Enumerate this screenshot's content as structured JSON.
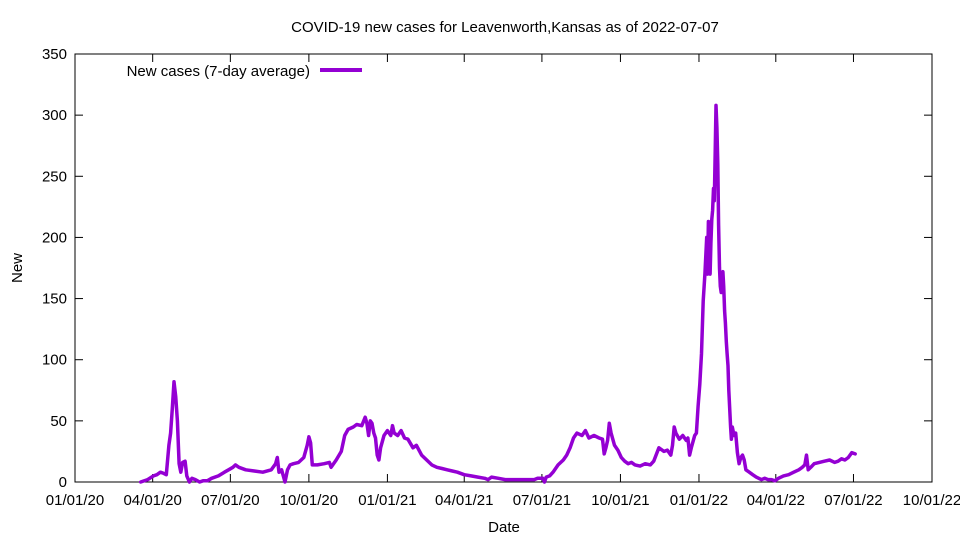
{
  "chart_data": {
    "type": "line",
    "title": "COVID-19 new cases for Leavenworth,Kansas as of 2022-07-07",
    "xlabel": "Date",
    "ylabel": "New",
    "ylim": [
      0,
      350
    ],
    "yticks": [
      0,
      50,
      100,
      150,
      200,
      250,
      300,
      350
    ],
    "xlim": [
      0,
      1004
    ],
    "xticks": [
      {
        "day": 0,
        "label": "01/01/20"
      },
      {
        "day": 91,
        "label": "04/01/20"
      },
      {
        "day": 182,
        "label": "07/01/20"
      },
      {
        "day": 274,
        "label": "10/01/20"
      },
      {
        "day": 366,
        "label": "01/01/21"
      },
      {
        "day": 456,
        "label": "04/01/21"
      },
      {
        "day": 547,
        "label": "07/01/21"
      },
      {
        "day": 639,
        "label": "10/01/21"
      },
      {
        "day": 731,
        "label": "01/01/22"
      },
      {
        "day": 821,
        "label": "04/01/22"
      },
      {
        "day": 912,
        "label": "07/01/22"
      },
      {
        "day": 1004,
        "label": "10/01/22"
      }
    ],
    "legend_position": "top-left",
    "series": [
      {
        "name": "New cases (7-day average)",
        "color": "#9400d3",
        "x_unit": "days since 01/01/20",
        "points": [
          [
            77,
            0
          ],
          [
            85,
            2
          ],
          [
            92,
            5
          ],
          [
            96,
            6
          ],
          [
            100,
            8
          ],
          [
            104,
            7
          ],
          [
            107,
            6
          ],
          [
            110,
            30
          ],
          [
            112,
            40
          ],
          [
            114,
            60
          ],
          [
            116,
            82
          ],
          [
            118,
            70
          ],
          [
            120,
            50
          ],
          [
            122,
            15
          ],
          [
            124,
            8
          ],
          [
            126,
            16
          ],
          [
            129,
            17
          ],
          [
            131,
            5
          ],
          [
            134,
            0
          ],
          [
            137,
            3
          ],
          [
            141,
            2
          ],
          [
            146,
            0
          ],
          [
            150,
            1
          ],
          [
            155,
            1
          ],
          [
            160,
            3
          ],
          [
            168,
            5
          ],
          [
            175,
            8
          ],
          [
            180,
            10
          ],
          [
            185,
            12
          ],
          [
            188,
            14
          ],
          [
            192,
            12
          ],
          [
            200,
            10
          ],
          [
            210,
            9
          ],
          [
            220,
            8
          ],
          [
            230,
            10
          ],
          [
            235,
            15
          ],
          [
            237,
            20
          ],
          [
            239,
            8
          ],
          [
            242,
            10
          ],
          [
            244,
            5
          ],
          [
            246,
            0
          ],
          [
            249,
            10
          ],
          [
            252,
            14
          ],
          [
            256,
            15
          ],
          [
            262,
            16
          ],
          [
            268,
            20
          ],
          [
            272,
            30
          ],
          [
            274,
            37
          ],
          [
            276,
            32
          ],
          [
            278,
            14
          ],
          [
            284,
            14
          ],
          [
            292,
            15
          ],
          [
            298,
            16
          ],
          [
            300,
            12
          ],
          [
            306,
            18
          ],
          [
            312,
            25
          ],
          [
            316,
            38
          ],
          [
            320,
            43
          ],
          [
            326,
            45
          ],
          [
            330,
            47
          ],
          [
            336,
            46
          ],
          [
            340,
            53
          ],
          [
            342,
            48
          ],
          [
            344,
            38
          ],
          [
            346,
            50
          ],
          [
            348,
            48
          ],
          [
            350,
            40
          ],
          [
            352,
            36
          ],
          [
            354,
            22
          ],
          [
            356,
            18
          ],
          [
            358,
            28
          ],
          [
            362,
            38
          ],
          [
            366,
            42
          ],
          [
            370,
            38
          ],
          [
            372,
            46
          ],
          [
            374,
            40
          ],
          [
            378,
            38
          ],
          [
            382,
            42
          ],
          [
            386,
            36
          ],
          [
            390,
            35
          ],
          [
            396,
            28
          ],
          [
            400,
            30
          ],
          [
            406,
            22
          ],
          [
            412,
            18
          ],
          [
            418,
            14
          ],
          [
            424,
            12
          ],
          [
            430,
            11
          ],
          [
            436,
            10
          ],
          [
            442,
            9
          ],
          [
            448,
            8
          ],
          [
            456,
            6
          ],
          [
            464,
            5
          ],
          [
            472,
            4
          ],
          [
            480,
            3
          ],
          [
            484,
            2
          ],
          [
            488,
            4
          ],
          [
            496,
            3
          ],
          [
            504,
            2
          ],
          [
            510,
            2
          ],
          [
            516,
            2
          ],
          [
            524,
            2
          ],
          [
            532,
            2
          ],
          [
            538,
            2
          ],
          [
            542,
            3
          ],
          [
            548,
            3
          ],
          [
            550,
            0
          ],
          [
            552,
            4
          ],
          [
            556,
            5
          ],
          [
            560,
            8
          ],
          [
            566,
            14
          ],
          [
            572,
            18
          ],
          [
            576,
            22
          ],
          [
            580,
            28
          ],
          [
            584,
            36
          ],
          [
            588,
            40
          ],
          [
            594,
            38
          ],
          [
            598,
            42
          ],
          [
            602,
            36
          ],
          [
            608,
            38
          ],
          [
            614,
            36
          ],
          [
            618,
            35
          ],
          [
            620,
            23
          ],
          [
            622,
            28
          ],
          [
            624,
            34
          ],
          [
            626,
            48
          ],
          [
            628,
            40
          ],
          [
            632,
            30
          ],
          [
            636,
            26
          ],
          [
            640,
            20
          ],
          [
            644,
            17
          ],
          [
            648,
            15
          ],
          [
            652,
            16
          ],
          [
            656,
            14
          ],
          [
            662,
            13
          ],
          [
            668,
            15
          ],
          [
            674,
            14
          ],
          [
            678,
            17
          ],
          [
            684,
            28
          ],
          [
            690,
            25
          ],
          [
            694,
            26
          ],
          [
            698,
            22
          ],
          [
            700,
            30
          ],
          [
            702,
            45
          ],
          [
            704,
            40
          ],
          [
            708,
            35
          ],
          [
            712,
            38
          ],
          [
            716,
            34
          ],
          [
            718,
            36
          ],
          [
            720,
            22
          ],
          [
            722,
            28
          ],
          [
            726,
            38
          ],
          [
            728,
            40
          ],
          [
            730,
            62
          ],
          [
            732,
            80
          ],
          [
            734,
            105
          ],
          [
            736,
            148
          ],
          [
            738,
            170
          ],
          [
            739,
            185
          ],
          [
            740,
            200
          ],
          [
            741,
            170
          ],
          [
            742,
            213
          ],
          [
            743,
            195
          ],
          [
            744,
            170
          ],
          [
            745,
            195
          ],
          [
            746,
            215
          ],
          [
            747,
            222
          ],
          [
            748,
            240
          ],
          [
            749,
            230
          ],
          [
            750,
            270
          ],
          [
            751,
            308
          ],
          [
            752,
            290
          ],
          [
            753,
            260
          ],
          [
            754,
            210
          ],
          [
            755,
            175
          ],
          [
            756,
            160
          ],
          [
            757,
            155
          ],
          [
            758,
            170
          ],
          [
            759,
            172
          ],
          [
            760,
            160
          ],
          [
            761,
            140
          ],
          [
            762,
            130
          ],
          [
            763,
            115
          ],
          [
            764,
            105
          ],
          [
            765,
            95
          ],
          [
            766,
            75
          ],
          [
            767,
            60
          ],
          [
            768,
            45
          ],
          [
            769,
            35
          ],
          [
            770,
            45
          ],
          [
            772,
            38
          ],
          [
            774,
            40
          ],
          [
            776,
            24
          ],
          [
            778,
            15
          ],
          [
            780,
            20
          ],
          [
            782,
            22
          ],
          [
            784,
            18
          ],
          [
            786,
            10
          ],
          [
            790,
            8
          ],
          [
            794,
            6
          ],
          [
            798,
            4
          ],
          [
            804,
            2
          ],
          [
            808,
            3
          ],
          [
            812,
            2
          ],
          [
            816,
            2
          ],
          [
            820,
            1
          ],
          [
            824,
            3
          ],
          [
            830,
            5
          ],
          [
            836,
            6
          ],
          [
            842,
            8
          ],
          [
            848,
            10
          ],
          [
            852,
            12
          ],
          [
            855,
            14
          ],
          [
            857,
            22
          ],
          [
            859,
            10
          ],
          [
            862,
            12
          ],
          [
            866,
            15
          ],
          [
            872,
            16
          ],
          [
            878,
            17
          ],
          [
            884,
            18
          ],
          [
            890,
            16
          ],
          [
            894,
            17
          ],
          [
            898,
            19
          ],
          [
            902,
            18
          ],
          [
            906,
            20
          ],
          [
            910,
            24
          ],
          [
            914,
            23
          ]
        ]
      }
    ]
  }
}
